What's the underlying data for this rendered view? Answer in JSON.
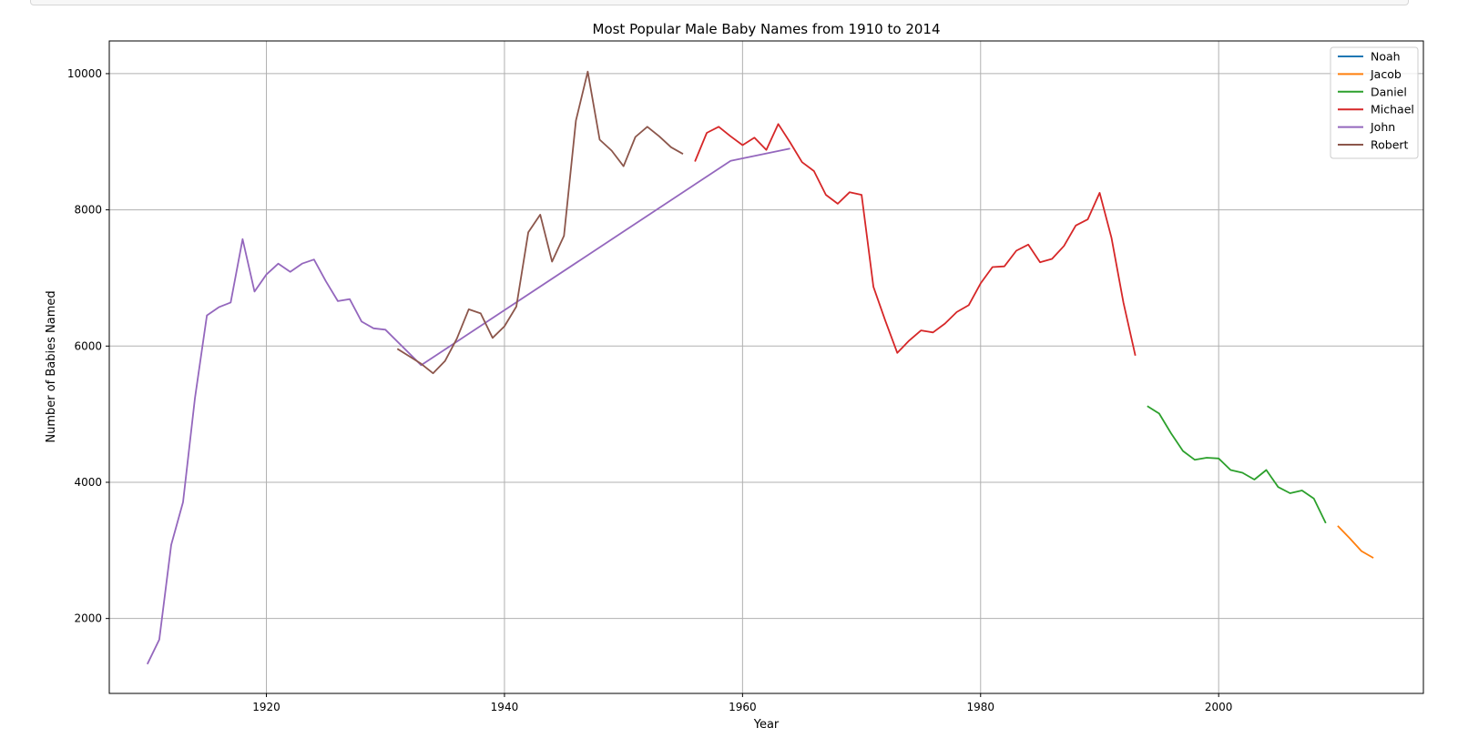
{
  "chart_data": {
    "type": "line",
    "title": "Most Popular Male Baby Names from 1910 to 2014",
    "xlabel": "Year",
    "ylabel": "Number of Babies Named",
    "xlim": [
      1906.8,
      2017.2
    ],
    "ylim": [
      900,
      10480
    ],
    "xticks": [
      1920,
      1940,
      1960,
      1980,
      2000
    ],
    "yticks": [
      2000,
      4000,
      6000,
      8000,
      10000
    ],
    "grid": true,
    "legend_position": "top-right",
    "series": [
      {
        "name": "Noah",
        "color": "#1f77b4",
        "points": []
      },
      {
        "name": "Jacob",
        "color": "#ff7f0e",
        "points": [
          [
            2010,
            3360
          ],
          [
            2011,
            3180
          ],
          [
            2012,
            2990
          ],
          [
            2013,
            2890
          ]
        ]
      },
      {
        "name": "Daniel",
        "color": "#2ca02c",
        "points": [
          [
            1994,
            5120
          ],
          [
            1995,
            5010
          ],
          [
            1996,
            4720
          ],
          [
            1997,
            4460
          ],
          [
            1998,
            4330
          ],
          [
            1999,
            4360
          ],
          [
            2000,
            4350
          ],
          [
            2001,
            4180
          ],
          [
            2002,
            4140
          ],
          [
            2003,
            4040
          ],
          [
            2004,
            4180
          ],
          [
            2005,
            3930
          ],
          [
            2006,
            3840
          ],
          [
            2007,
            3880
          ],
          [
            2008,
            3760
          ],
          [
            2009,
            3400
          ]
        ]
      },
      {
        "name": "Michael",
        "color": "#d62728",
        "points": [
          [
            1956,
            8710
          ],
          [
            1957,
            9130
          ],
          [
            1958,
            9220
          ],
          [
            1959,
            9080
          ],
          [
            1960,
            8950
          ],
          [
            1961,
            9060
          ],
          [
            1962,
            8880
          ],
          [
            1963,
            9260
          ],
          [
            1964,
            8990
          ],
          [
            1965,
            8700
          ],
          [
            1966,
            8570
          ],
          [
            1967,
            8220
          ],
          [
            1968,
            8090
          ],
          [
            1969,
            8260
          ],
          [
            1970,
            8220
          ],
          [
            1971,
            6870
          ],
          [
            1972,
            6370
          ],
          [
            1973,
            5900
          ],
          [
            1974,
            6080
          ],
          [
            1975,
            6230
          ],
          [
            1976,
            6200
          ],
          [
            1977,
            6330
          ],
          [
            1978,
            6500
          ],
          [
            1979,
            6600
          ],
          [
            1980,
            6920
          ],
          [
            1981,
            7160
          ],
          [
            1982,
            7170
          ],
          [
            1983,
            7400
          ],
          [
            1984,
            7490
          ],
          [
            1985,
            7230
          ],
          [
            1986,
            7280
          ],
          [
            1987,
            7470
          ],
          [
            1988,
            7770
          ],
          [
            1989,
            7860
          ],
          [
            1990,
            8250
          ],
          [
            1991,
            7590
          ],
          [
            1992,
            6640
          ],
          [
            1993,
            5860
          ]
        ]
      },
      {
        "name": "John",
        "color": "#9467bd",
        "points": [
          [
            1910,
            1330
          ],
          [
            1911,
            1690
          ],
          [
            1912,
            3080
          ],
          [
            1913,
            3710
          ],
          [
            1914,
            5240
          ],
          [
            1915,
            6450
          ],
          [
            1916,
            6570
          ],
          [
            1917,
            6640
          ],
          [
            1918,
            7570
          ],
          [
            1919,
            6800
          ],
          [
            1920,
            7050
          ],
          [
            1921,
            7210
          ],
          [
            1922,
            7090
          ],
          [
            1923,
            7210
          ],
          [
            1924,
            7270
          ],
          [
            1925,
            6950
          ],
          [
            1926,
            6660
          ],
          [
            1927,
            6690
          ],
          [
            1928,
            6360
          ],
          [
            1929,
            6260
          ],
          [
            1930,
            6240
          ],
          [
            1933,
            5720
          ],
          [
            1959,
            8720
          ],
          [
            1964,
            8900
          ]
        ]
      },
      {
        "name": "Robert",
        "color": "#8c564b",
        "points": [
          [
            1931,
            5960
          ],
          [
            1932,
            5850
          ],
          [
            1933,
            5740
          ],
          [
            1934,
            5600
          ],
          [
            1935,
            5780
          ],
          [
            1936,
            6110
          ],
          [
            1937,
            6540
          ],
          [
            1938,
            6480
          ],
          [
            1939,
            6120
          ],
          [
            1940,
            6290
          ],
          [
            1941,
            6580
          ],
          [
            1942,
            7670
          ],
          [
            1943,
            7930
          ],
          [
            1944,
            7240
          ],
          [
            1945,
            7620
          ],
          [
            1946,
            9310
          ],
          [
            1947,
            10030
          ],
          [
            1948,
            9030
          ],
          [
            1949,
            8870
          ],
          [
            1950,
            8640
          ],
          [
            1951,
            9070
          ],
          [
            1952,
            9220
          ],
          [
            1953,
            9080
          ],
          [
            1954,
            8920
          ],
          [
            1955,
            8820
          ]
        ]
      }
    ]
  }
}
